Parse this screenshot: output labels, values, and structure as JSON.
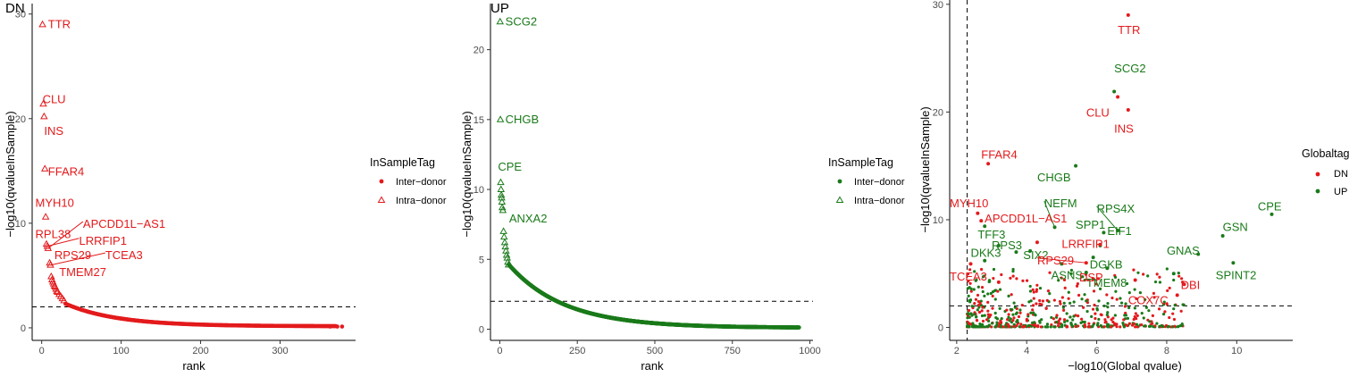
{
  "colors": {
    "dn": "#e31a1c",
    "up": "#1a7a1a"
  },
  "chart_data": [
    {
      "type": "scatter",
      "title": "DN",
      "xlabel": "rank",
      "ylabel": "−log10(qvalueInSample)",
      "xlim": [
        -12,
        395
      ],
      "ylim": [
        -1.2,
        31
      ],
      "xticks": [
        0,
        100,
        200,
        300
      ],
      "yticks": [
        0,
        10,
        20,
        30
      ],
      "hline": 2,
      "legend": {
        "title": "InSampleTag",
        "items": [
          "Inter−donor",
          "Intra−donor"
        ],
        "position": "right"
      },
      "color": "dn",
      "intra_points": [
        [
          1,
          29.0
        ],
        [
          2,
          21.4
        ],
        [
          3,
          20.2
        ],
        [
          4,
          15.2
        ],
        [
          5,
          10.6
        ],
        [
          6,
          8.0
        ],
        [
          7,
          7.8
        ],
        [
          8,
          7.6
        ],
        [
          10,
          6.2
        ],
        [
          11,
          6.0
        ],
        [
          12,
          4.9
        ],
        [
          13,
          4.6
        ],
        [
          14,
          4.4
        ],
        [
          15,
          4.2
        ],
        [
          16,
          4.0
        ],
        [
          17,
          3.9
        ],
        [
          18,
          3.7
        ],
        [
          19,
          3.5
        ],
        [
          20,
          3.4
        ],
        [
          22,
          3.2
        ],
        [
          24,
          3.0
        ],
        [
          26,
          2.8
        ],
        [
          28,
          2.6
        ]
      ],
      "inter_curve": {
        "start": 30,
        "end": 370,
        "y_start": 2.3,
        "y_end": 0.15
      },
      "extra_points": [
        [
          363,
          0.12
        ],
        [
          372,
          0.12
        ],
        [
          378,
          0.12
        ]
      ],
      "labels": [
        {
          "text": "TTR",
          "x": 1,
          "y": 29.0,
          "lx": 8,
          "ly": 29.0,
          "leader": false
        },
        {
          "text": "CLU",
          "x": 2,
          "y": 21.4,
          "lx": 1,
          "ly": 21.8,
          "leader": false
        },
        {
          "text": "INS",
          "x": 3,
          "y": 20.2,
          "lx": 3,
          "ly": 18.8,
          "leader": false
        },
        {
          "text": "FFAR4",
          "x": 4,
          "y": 15.2,
          "lx": 8,
          "ly": 14.9,
          "leader": false
        },
        {
          "text": "MYH10",
          "x": 5,
          "y": 10.6,
          "lx": -8,
          "ly": 11.9,
          "leader": false
        },
        {
          "text": "APCDD1L−AS1",
          "x": 8,
          "y": 7.6,
          "lx": 52,
          "ly": 9.9,
          "leader": true
        },
        {
          "text": "RPL38",
          "x": 6,
          "y": 8.0,
          "lx": -8,
          "ly": 8.9,
          "leader": false
        },
        {
          "text": "LRRFIP1",
          "x": 7,
          "y": 7.8,
          "lx": 47,
          "ly": 8.3,
          "leader": true
        },
        {
          "text": "RPS29",
          "x": 10,
          "y": 6.2,
          "lx": 16,
          "ly": 6.9,
          "leader": false
        },
        {
          "text": "TCEA3",
          "x": 11,
          "y": 6.0,
          "lx": 80,
          "ly": 6.9,
          "leader": true
        },
        {
          "text": "TMEM27",
          "x": 12,
          "y": 4.9,
          "lx": 22,
          "ly": 5.3,
          "leader": false
        }
      ]
    },
    {
      "type": "scatter",
      "title": "UP",
      "xlabel": "rank",
      "ylabel": "−log10(qvalueInSample)",
      "xlim": [
        -30,
        1010
      ],
      "ylim": [
        -0.8,
        23.3
      ],
      "xticks": [
        0,
        250,
        500,
        750,
        1000
      ],
      "yticks": [
        0,
        5,
        10,
        15,
        20
      ],
      "hline": 2,
      "legend": {
        "title": "InSampleTag",
        "items": [
          "Inter−donor",
          "Intra−donor"
        ],
        "position": "right"
      },
      "color": "up",
      "intra_points": [
        [
          1,
          22.0
        ],
        [
          2,
          15.0
        ],
        [
          3,
          10.5
        ],
        [
          4,
          10.0
        ],
        [
          5,
          9.6
        ],
        [
          6,
          9.4
        ],
        [
          7,
          9.1
        ],
        [
          8,
          8.7
        ],
        [
          10,
          8.5
        ],
        [
          12,
          7.0
        ],
        [
          14,
          6.6
        ],
        [
          16,
          6.2
        ],
        [
          18,
          5.9
        ],
        [
          20,
          5.6
        ],
        [
          22,
          5.3
        ],
        [
          24,
          5.1
        ],
        [
          26,
          4.8
        ],
        [
          28,
          4.6
        ]
      ],
      "inter_curve": {
        "start": 30,
        "end": 965,
        "y_start": 4.6,
        "y_end": 0.1
      },
      "extra_points": [],
      "labels": [
        {
          "text": "SCG2",
          "x": 1,
          "y": 22.0,
          "lx": 18,
          "ly": 22.0,
          "leader": false
        },
        {
          "text": "CHGB",
          "x": 2,
          "y": 15.0,
          "lx": 18,
          "ly": 15.0,
          "leader": false
        },
        {
          "text": "CPE",
          "x": 3,
          "y": 10.5,
          "lx": -6,
          "ly": 11.6,
          "leader": false
        },
        {
          "text": "ANXA2",
          "x": 12,
          "y": 7.0,
          "lx": 30,
          "ly": 7.9,
          "leader": false
        }
      ]
    },
    {
      "type": "scatter",
      "title": "",
      "xlabel": "−log10(Global qvalue)",
      "ylabel": "−log10(qvalueInSample)",
      "xlim": [
        1.8,
        11.6
      ],
      "ylim": [
        -1.2,
        30.4
      ],
      "xticks": [
        2,
        4,
        6,
        8,
        10
      ],
      "yticks": [
        0,
        10,
        20,
        30
      ],
      "hline": 2,
      "vline": 2.3,
      "legend": {
        "title": "Globaltag",
        "items": [
          "DN",
          "UP"
        ],
        "position": "right"
      },
      "points_dn": [
        [
          6.9,
          29.0
        ],
        [
          6.6,
          21.4
        ],
        [
          6.9,
          20.2
        ],
        [
          2.9,
          15.2
        ],
        [
          2.6,
          10.6
        ],
        [
          2.7,
          9.9
        ],
        [
          4.3,
          7.9
        ],
        [
          6.1,
          7.7
        ],
        [
          5.7,
          6.0
        ],
        [
          2.4,
          5.9
        ],
        [
          7.1,
          4.4
        ],
        [
          8.3,
          3.0
        ],
        [
          8.5,
          4.0
        ],
        [
          5.9,
          4.5
        ],
        [
          3.2,
          4.2
        ]
      ],
      "points_up": [
        [
          6.5,
          21.9
        ],
        [
          5.4,
          15.0
        ],
        [
          11.0,
          10.5
        ],
        [
          9.6,
          8.5
        ],
        [
          8.9,
          6.8
        ],
        [
          9.9,
          6.0
        ],
        [
          6.6,
          9.0
        ],
        [
          6.2,
          8.8
        ],
        [
          6.1,
          7.6
        ],
        [
          4.8,
          9.3
        ],
        [
          2.8,
          9.4
        ],
        [
          3.7,
          7.0
        ],
        [
          3.2,
          7.6
        ],
        [
          4.1,
          7.1
        ],
        [
          5.9,
          6.5
        ],
        [
          5.0,
          5.9
        ],
        [
          6.3,
          5.5
        ],
        [
          5.7,
          5.1
        ],
        [
          2.8,
          6.2
        ],
        [
          8.2,
          5.0
        ]
      ],
      "cloud_seed": 7,
      "cloud_count": 560,
      "labels": [
        {
          "text": "TTR",
          "x": 6.9,
          "y": 29.0,
          "lx": 6.6,
          "ly": 27.6,
          "color": "dn",
          "leader": false
        },
        {
          "text": "SCG2",
          "x": 6.5,
          "y": 21.9,
          "lx": 6.5,
          "ly": 24.0,
          "color": "up",
          "leader": false
        },
        {
          "text": "CLU",
          "x": 6.6,
          "y": 21.4,
          "lx": 5.7,
          "ly": 19.9,
          "color": "dn",
          "leader": false
        },
        {
          "text": "INS",
          "x": 6.9,
          "y": 20.2,
          "lx": 6.5,
          "ly": 18.4,
          "color": "dn",
          "leader": false
        },
        {
          "text": "FFAR4",
          "x": 2.9,
          "y": 15.2,
          "lx": 2.7,
          "ly": 16.0,
          "color": "dn",
          "leader": false
        },
        {
          "text": "CHGB",
          "x": 5.4,
          "y": 15.0,
          "lx": 4.3,
          "ly": 13.9,
          "color": "up",
          "leader": false
        },
        {
          "text": "MYH10",
          "x": 2.6,
          "y": 10.6,
          "lx": 1.8,
          "ly": 11.5,
          "color": "dn",
          "leader": false
        },
        {
          "text": "NEFM",
          "x": 4.8,
          "y": 9.3,
          "lx": 4.5,
          "ly": 11.5,
          "color": "up",
          "leader": true
        },
        {
          "text": "RPS4X",
          "x": 6.6,
          "y": 9.0,
          "lx": 6.0,
          "ly": 11.0,
          "color": "up",
          "leader": true
        },
        {
          "text": "CPE",
          "x": 11.0,
          "y": 10.5,
          "lx": 10.6,
          "ly": 11.2,
          "color": "up",
          "leader": false
        },
        {
          "text": "APCDD1L−AS1",
          "x": 2.7,
          "y": 9.9,
          "lx": 2.8,
          "ly": 10.1,
          "color": "dn",
          "leader": false
        },
        {
          "text": "SPP1",
          "x": 6.2,
          "y": 8.8,
          "lx": 5.4,
          "ly": 9.5,
          "color": "up",
          "leader": false
        },
        {
          "text": "GSN",
          "x": 9.6,
          "y": 8.5,
          "lx": 9.6,
          "ly": 9.3,
          "color": "up",
          "leader": false
        },
        {
          "text": "TFF3",
          "x": 2.8,
          "y": 9.4,
          "lx": 2.6,
          "ly": 8.6,
          "color": "up",
          "leader": false
        },
        {
          "text": "EIF1",
          "x": 6.1,
          "y": 7.6,
          "lx": 6.3,
          "ly": 8.9,
          "color": "up",
          "leader": false
        },
        {
          "text": "LRRFIP1",
          "x": 6.1,
          "y": 7.7,
          "lx": 5.0,
          "ly": 7.7,
          "color": "dn",
          "leader": false
        },
        {
          "text": "RPS3",
          "x": 3.2,
          "y": 7.6,
          "lx": 3.0,
          "ly": 7.6,
          "color": "up",
          "leader": false
        },
        {
          "text": "DKK3",
          "x": 2.8,
          "y": 6.2,
          "lx": 2.4,
          "ly": 6.9,
          "color": "up",
          "leader": false
        },
        {
          "text": "SIX2",
          "x": 4.1,
          "y": 7.1,
          "lx": 3.9,
          "ly": 6.7,
          "color": "up",
          "leader": false
        },
        {
          "text": "GNAS",
          "x": 8.9,
          "y": 6.8,
          "lx": 8.0,
          "ly": 7.1,
          "color": "up",
          "leader": false
        },
        {
          "text": "RPS29",
          "x": 5.7,
          "y": 6.0,
          "lx": 4.3,
          "ly": 6.2,
          "color": "dn",
          "leader": true
        },
        {
          "text": "DGKB",
          "x": 6.3,
          "y": 5.5,
          "lx": 5.8,
          "ly": 5.8,
          "color": "up",
          "leader": false
        },
        {
          "text": "SPINT2",
          "x": 9.9,
          "y": 6.0,
          "lx": 9.4,
          "ly": 4.8,
          "color": "up",
          "leader": false
        },
        {
          "text": "TCEA3",
          "x": 2.4,
          "y": 5.9,
          "lx": 1.8,
          "ly": 4.7,
          "color": "dn",
          "leader": false
        },
        {
          "text": "ASNS",
          "x": 5.0,
          "y": 5.9,
          "lx": 4.7,
          "ly": 4.8,
          "color": "up",
          "leader": false
        },
        {
          "text": "DSP",
          "x": 5.9,
          "y": 4.5,
          "lx": 5.5,
          "ly": 4.6,
          "color": "dn",
          "leader": false
        },
        {
          "text": "TMEM8",
          "x": 5.9,
          "y": 4.5,
          "lx": 5.7,
          "ly": 4.1,
          "color": "up",
          "leader": false
        },
        {
          "text": "DBI",
          "x": 8.5,
          "y": 4.0,
          "lx": 8.4,
          "ly": 3.9,
          "color": "dn",
          "leader": false
        },
        {
          "text": "COX7C",
          "x": 7.1,
          "y": 4.4,
          "lx": 6.9,
          "ly": 2.5,
          "color": "dn",
          "leader": false
        }
      ]
    }
  ]
}
